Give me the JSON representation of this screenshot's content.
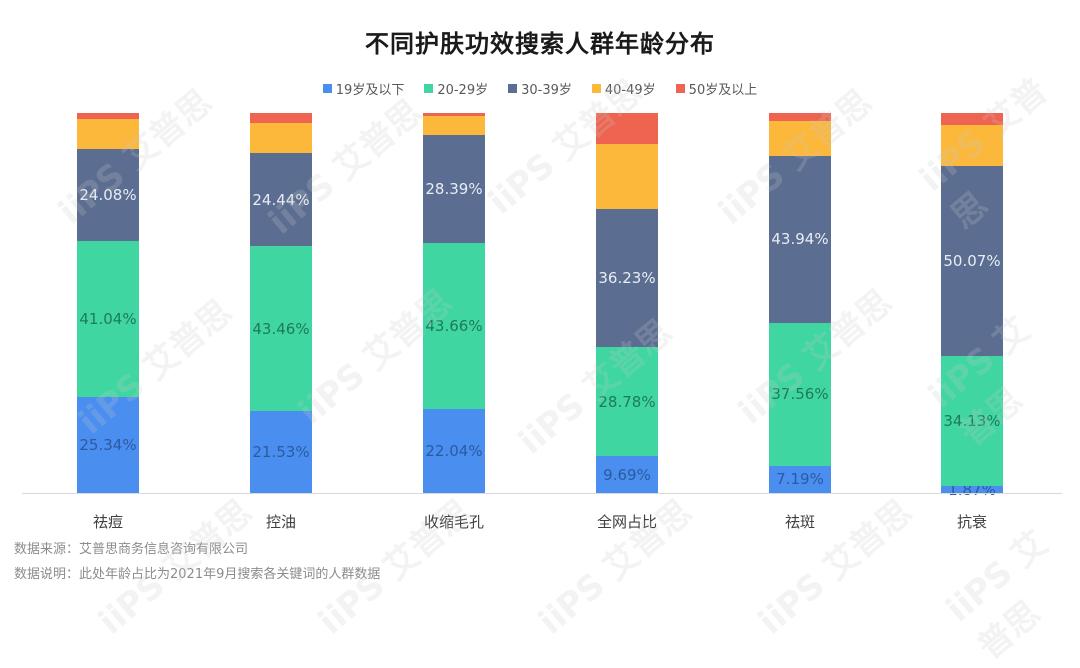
{
  "chart_data": {
    "type": "bar",
    "stacked": true,
    "title": "不同护肤功效搜索人群年龄分布",
    "categories": [
      "祛痘",
      "控油",
      "收缩毛孔",
      "全网占比",
      "祛斑",
      "抗衰"
    ],
    "series": [
      {
        "name": "19岁及以下",
        "color": "#4a8ef0",
        "values": [
          25.34,
          21.53,
          22.04,
          9.69,
          7.19,
          1.87
        ],
        "labeled": true,
        "label_color": "#2c5aa0"
      },
      {
        "name": "20-29岁",
        "color": "#3fd6a2",
        "values": [
          41.04,
          43.46,
          43.66,
          28.78,
          37.56,
          34.13
        ],
        "labeled": true,
        "label_color": "#1f7a5c"
      },
      {
        "name": "30-39岁",
        "color": "#5b6e91",
        "values": [
          24.08,
          24.44,
          28.39,
          36.23,
          43.94,
          50.07
        ],
        "labeled": true,
        "label_color": "#e8ecf4"
      },
      {
        "name": "40-49岁",
        "color": "#fbb83a",
        "values": [
          7.9,
          8.0,
          5.1,
          17.1,
          9.2,
          10.7
        ],
        "labeled": false
      },
      {
        "name": "50岁及以上",
        "color": "#ef6450",
        "values": [
          1.64,
          2.57,
          0.81,
          8.2,
          2.11,
          3.23
        ],
        "labeled": false
      }
    ],
    "xlabel": "",
    "ylabel": "",
    "ylim": [
      0,
      100
    ],
    "grid": false,
    "legend_position": "top"
  },
  "footer": {
    "source": "数据来源：艾普思商务信息咨询有限公司",
    "note": "数据说明：此处年龄占比为2021年9月搜索各关键词的人群数据"
  },
  "watermark": "iiPS 艾普思"
}
